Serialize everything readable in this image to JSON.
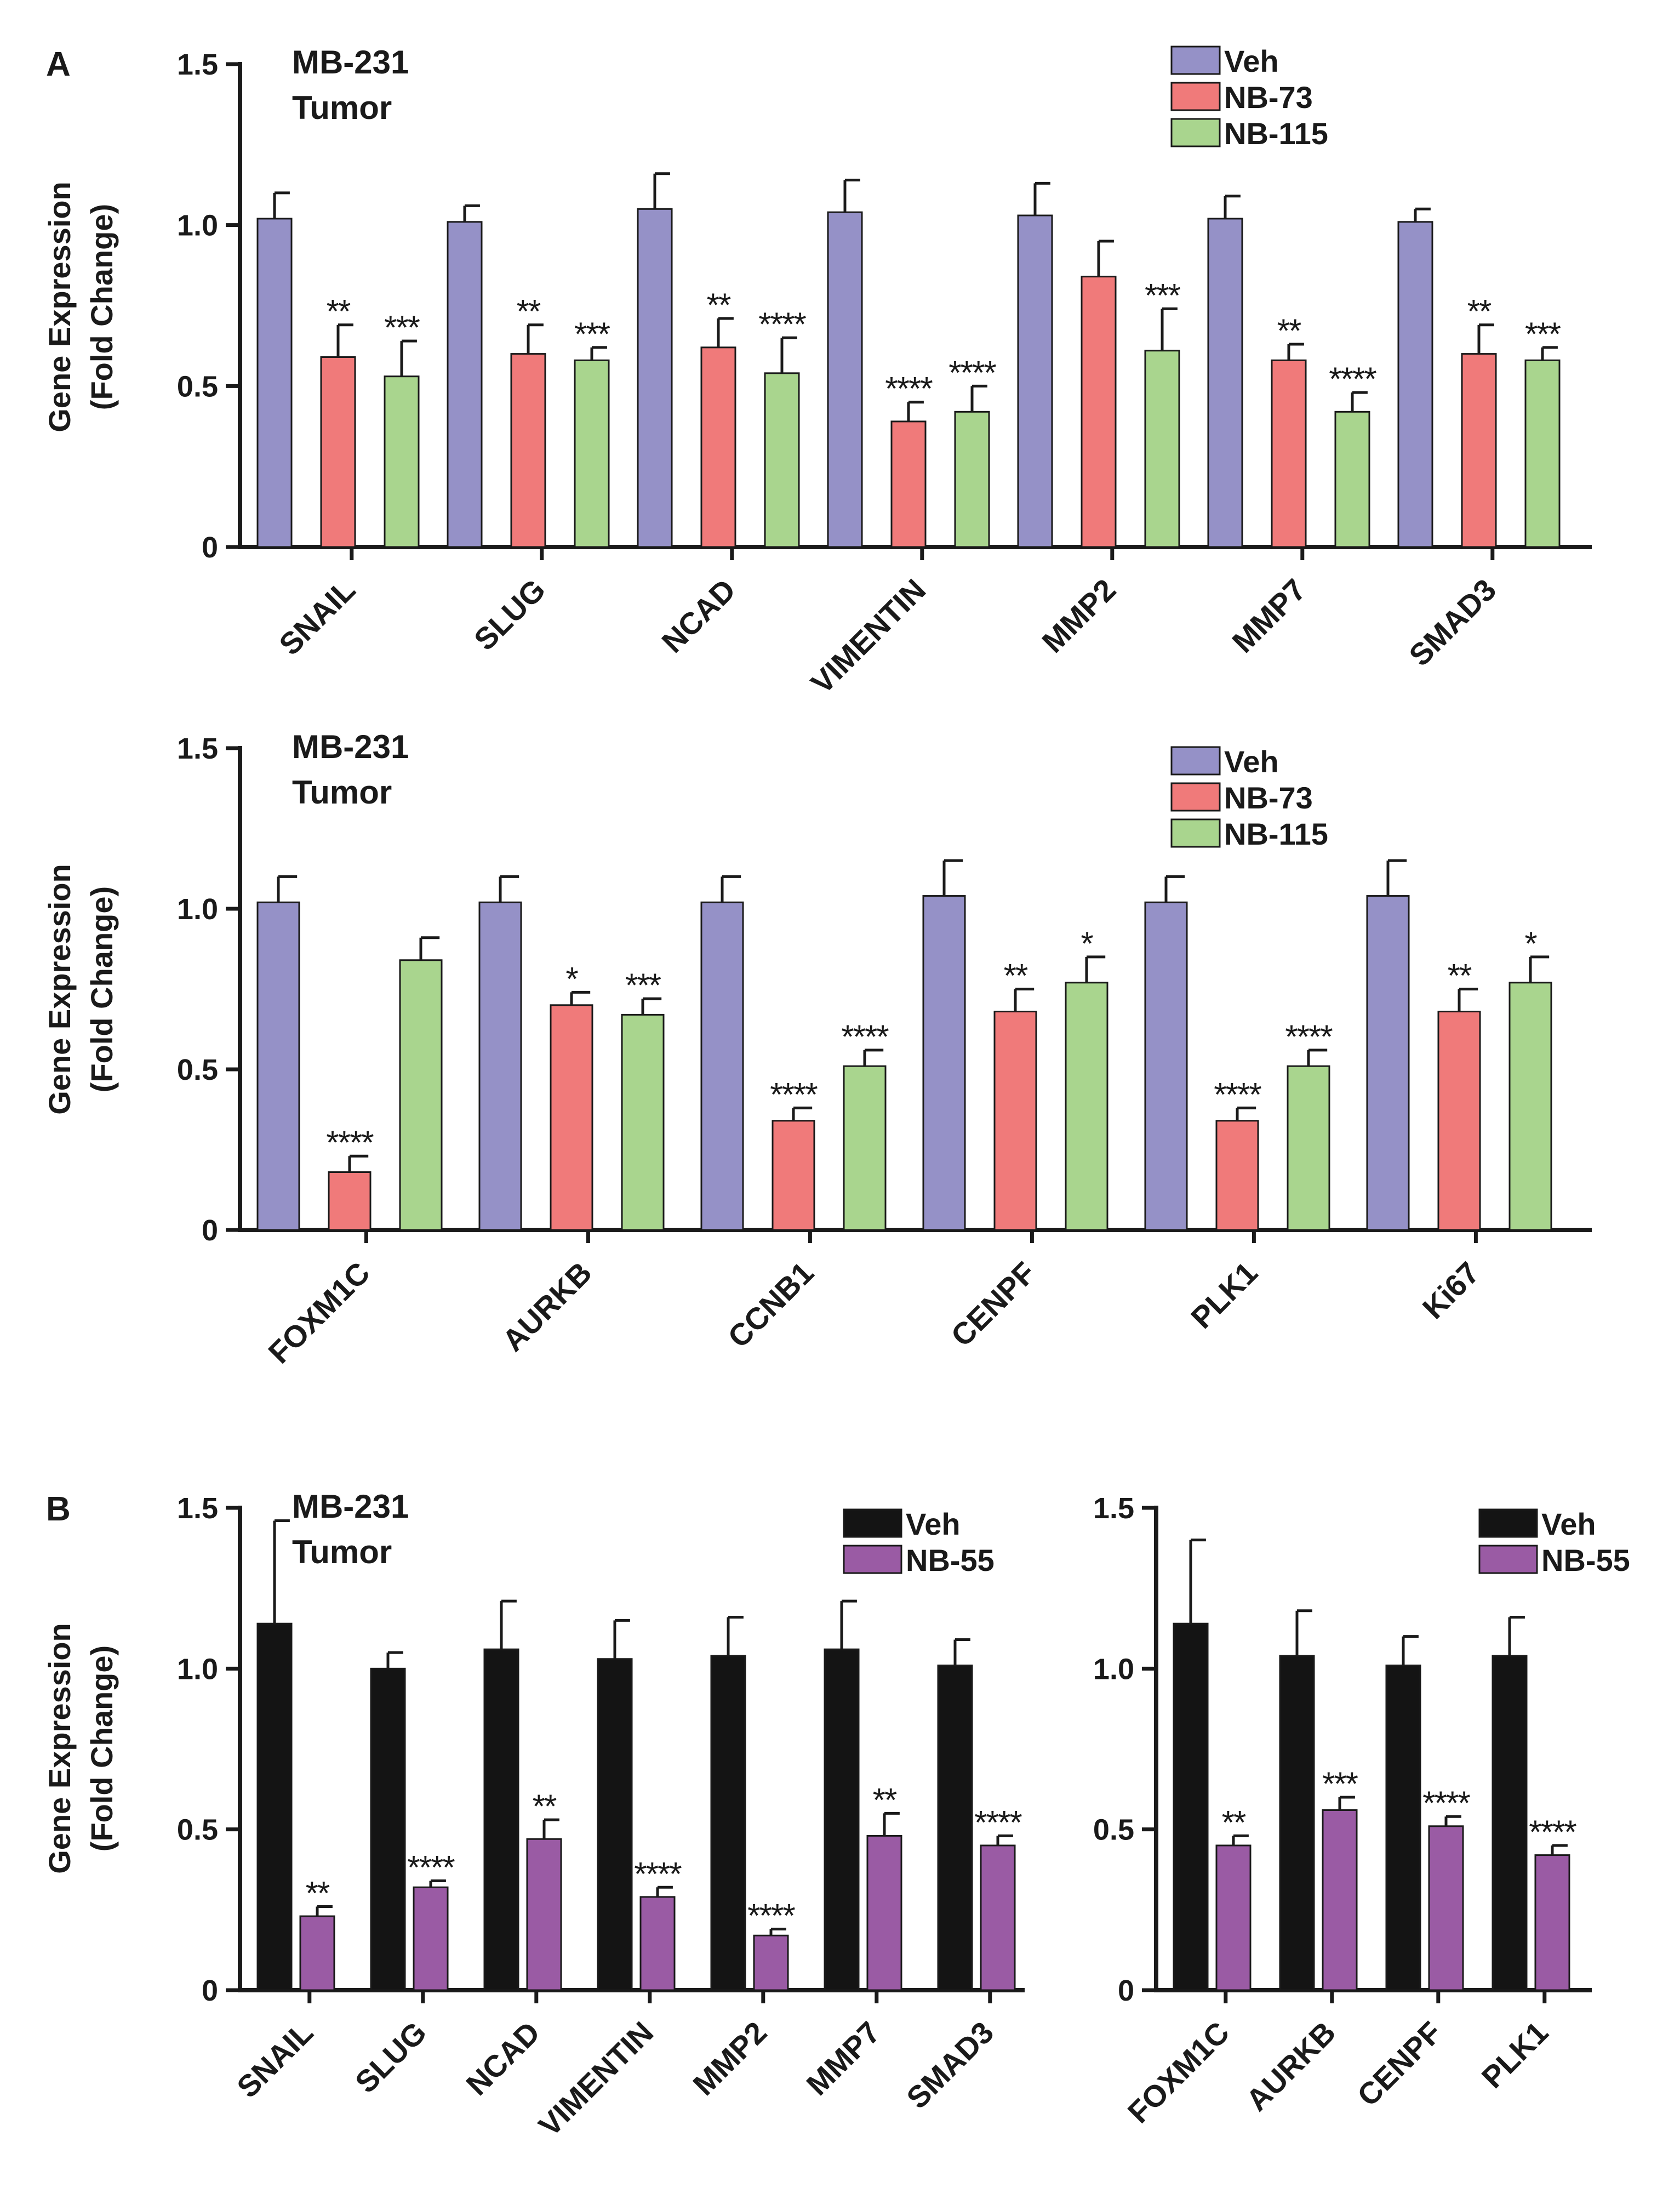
{
  "colors": {
    "veh_panelA": "#9591c7",
    "nb73": "#f07a7a",
    "nb115": "#a9d58e",
    "veh_panelB": "#141414",
    "nb55": "#9a5ba4",
    "axis": "#1a1a1a"
  },
  "panels": [
    {
      "id": "A",
      "label": "A"
    },
    {
      "id": "B",
      "label": "B"
    }
  ],
  "chart_data": [
    {
      "id": "A1",
      "type": "bar",
      "panel": "A",
      "annotation": [
        "MB-231",
        "Tumor"
      ],
      "ylabel": [
        "Gene Expression",
        "(Fold Change)"
      ],
      "ylim": [
        0,
        1.5
      ],
      "yticks": [
        "0",
        "0.5",
        "1.0",
        "1.5"
      ],
      "legend_position": "top-right",
      "categories": [
        "SNAIL",
        "SLUG",
        "NCAD",
        "VIMENTIN",
        "MMP2",
        "MMP7",
        "SMAD3"
      ],
      "series": [
        {
          "name": "Veh",
          "color": "#9591c7",
          "values": [
            1.02,
            1.01,
            1.05,
            1.04,
            1.03,
            1.02,
            1.01
          ],
          "errors": [
            0.08,
            0.05,
            0.11,
            0.1,
            0.1,
            0.07,
            0.04
          ],
          "significance": [
            "",
            "",
            "",
            "",
            "",
            "",
            ""
          ]
        },
        {
          "name": "NB-73",
          "color": "#f07a7a",
          "values": [
            0.59,
            0.6,
            0.62,
            0.39,
            0.84,
            0.58,
            0.6
          ],
          "errors": [
            0.1,
            0.09,
            0.09,
            0.06,
            0.11,
            0.05,
            0.09
          ],
          "significance": [
            "**",
            "**",
            "**",
            "****",
            "",
            "**",
            "**"
          ]
        },
        {
          "name": "NB-115",
          "color": "#a9d58e",
          "values": [
            0.53,
            0.58,
            0.54,
            0.42,
            0.61,
            0.42,
            0.58
          ],
          "errors": [
            0.11,
            0.04,
            0.11,
            0.08,
            0.13,
            0.06,
            0.04
          ],
          "significance": [
            "***",
            "***",
            "****",
            "****",
            "***",
            "****",
            "***"
          ]
        }
      ]
    },
    {
      "id": "A2",
      "type": "bar",
      "panel": "A",
      "annotation": [
        "MB-231",
        "Tumor"
      ],
      "ylabel": [
        "Gene Expression",
        "(Fold Change)"
      ],
      "ylim": [
        0,
        1.5
      ],
      "yticks": [
        "0",
        "0.5",
        "1.0",
        "1.5"
      ],
      "legend_position": "top-right",
      "categories": [
        "FOXM1C",
        "AURKB",
        "CCNB1",
        "CENPF",
        "PLK1",
        "Ki67"
      ],
      "series": [
        {
          "name": "Veh",
          "color": "#9591c7",
          "values": [
            1.02,
            1.02,
            1.02,
            1.04,
            1.02,
            1.04
          ],
          "errors": [
            0.08,
            0.08,
            0.08,
            0.11,
            0.08,
            0.11
          ],
          "significance": [
            "",
            "",
            "",
            "",
            "",
            ""
          ]
        },
        {
          "name": "NB-73",
          "color": "#f07a7a",
          "values": [
            0.18,
            0.7,
            0.34,
            0.68,
            0.34,
            0.68
          ],
          "errors": [
            0.05,
            0.04,
            0.04,
            0.07,
            0.04,
            0.07
          ],
          "significance": [
            "****",
            "*",
            "****",
            "**",
            "****",
            "**"
          ]
        },
        {
          "name": "NB-115",
          "color": "#a9d58e",
          "values": [
            0.84,
            0.67,
            0.51,
            0.77,
            0.51,
            0.77
          ],
          "errors": [
            0.07,
            0.05,
            0.05,
            0.08,
            0.05,
            0.08
          ],
          "significance": [
            "",
            "***",
            "****",
            "*",
            "****",
            "*"
          ]
        }
      ]
    },
    {
      "id": "B1",
      "type": "bar",
      "panel": "B",
      "annotation": [
        "MB-231",
        "Tumor"
      ],
      "ylabel": [
        "Gene Expression",
        "(Fold Change)"
      ],
      "ylim": [
        0,
        1.5
      ],
      "yticks": [
        "0",
        "0.5",
        "1.0",
        "1.5"
      ],
      "legend_position": "top-right",
      "categories": [
        "SNAIL",
        "SLUG",
        "NCAD",
        "VIMENTIN",
        "MMP2",
        "MMP7",
        "SMAD3"
      ],
      "series": [
        {
          "name": "Veh",
          "color": "#141414",
          "values": [
            1.14,
            1.0,
            1.06,
            1.03,
            1.04,
            1.06,
            1.01
          ],
          "errors": [
            0.32,
            0.05,
            0.15,
            0.12,
            0.12,
            0.15,
            0.08
          ],
          "significance": [
            "",
            "",
            "",
            "",
            "",
            "",
            ""
          ]
        },
        {
          "name": "NB-55",
          "color": "#9a5ba4",
          "values": [
            0.23,
            0.32,
            0.47,
            0.29,
            0.17,
            0.48,
            0.45
          ],
          "errors": [
            0.03,
            0.02,
            0.06,
            0.03,
            0.02,
            0.07,
            0.03
          ],
          "significance": [
            "**",
            "****",
            "**",
            "****",
            "****",
            "**",
            "****"
          ]
        }
      ]
    },
    {
      "id": "B2",
      "type": "bar",
      "panel": "B",
      "annotation": [],
      "ylabel": [],
      "ylim": [
        0,
        1.5
      ],
      "yticks": [
        "0",
        "0.5",
        "1.0",
        "1.5"
      ],
      "legend_position": "top-right",
      "categories": [
        "FOXM1C",
        "AURKB",
        "CENPF",
        "PLK1"
      ],
      "series": [
        {
          "name": "Veh",
          "color": "#141414",
          "values": [
            1.14,
            1.04,
            1.01,
            1.04
          ],
          "errors": [
            0.26,
            0.14,
            0.09,
            0.12
          ],
          "significance": [
            "",
            "",
            "",
            ""
          ]
        },
        {
          "name": "NB-55",
          "color": "#9a5ba4",
          "values": [
            0.45,
            0.56,
            0.51,
            0.42
          ],
          "errors": [
            0.03,
            0.04,
            0.03,
            0.03
          ],
          "significance": [
            "**",
            "***",
            "****",
            "****"
          ]
        }
      ]
    }
  ]
}
